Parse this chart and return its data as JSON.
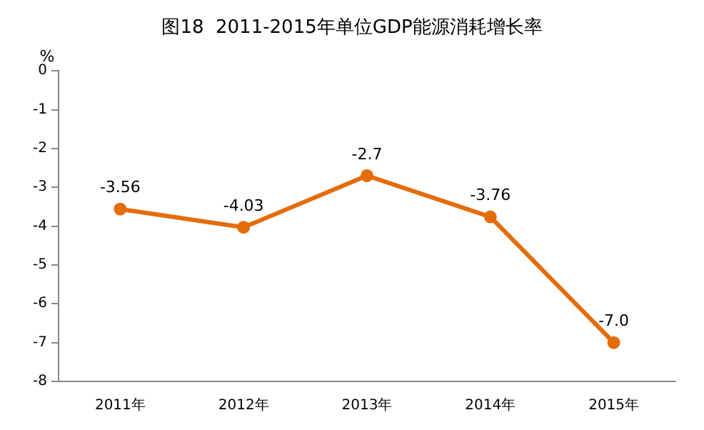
{
  "chart_data": {
    "type": "line",
    "title": "图18  2011-2015年单位GDP能源消耗增长率",
    "ylabel": "%",
    "categories": [
      "2011年",
      "2012年",
      "2013年",
      "2014年",
      "2015年"
    ],
    "series": [
      {
        "color": "#e46c0a",
        "values": [
          -3.56,
          -4.03,
          -2.7,
          -3.76,
          -7.0
        ],
        "value_labels": [
          "-3.56",
          "-4.03",
          "-2.7",
          "-3.76",
          "-7.0"
        ]
      }
    ],
    "ylim": [
      -8,
      0
    ],
    "yticks": [
      -8,
      -7,
      -6,
      -5,
      -4,
      -3,
      -2,
      -1,
      0
    ],
    "grid": false,
    "legend": false,
    "marker": "circle",
    "line_style": "solid"
  }
}
